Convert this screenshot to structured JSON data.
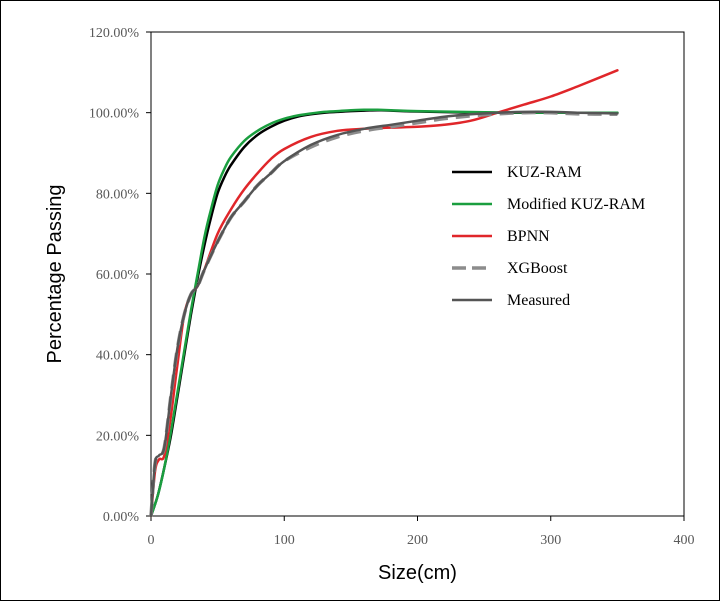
{
  "chart_data": {
    "type": "line",
    "title": "",
    "xlabel": "Size(cm)",
    "ylabel": "Percentage Passing",
    "xlim": [
      0,
      400
    ],
    "ylim": [
      0,
      120
    ],
    "x_ticks": [
      0,
      100,
      200,
      300,
      400
    ],
    "y_ticks": [
      0,
      20,
      40,
      60,
      80,
      100,
      120
    ],
    "x_tick_labels": [
      "0",
      "100",
      "200",
      "300",
      "400"
    ],
    "y_tick_labels": [
      "0.00%",
      "20.00%",
      "40.00%",
      "60.00%",
      "80.00%",
      "100.00%",
      "120.00%"
    ],
    "grid": false,
    "legend_position": "right",
    "series": [
      {
        "name": "KUZ-RAM",
        "color": "#000000",
        "dash": "solid",
        "x": [
          0,
          5,
          10,
          15,
          20,
          25,
          30,
          35,
          40,
          45,
          50,
          55,
          60,
          70,
          80,
          90,
          100,
          110,
          120,
          130,
          140,
          150,
          160,
          170,
          180,
          200,
          250,
          300,
          350
        ],
        "y": [
          0,
          5,
          12,
          20,
          30,
          40,
          50,
          59,
          67,
          74,
          80,
          84,
          87,
          91.5,
          94.5,
          96.5,
          98,
          99,
          99.6,
          100,
          100.2,
          100.4,
          100.5,
          100.6,
          100.5,
          100.3,
          100,
          100,
          100
        ]
      },
      {
        "name": "Modified KUZ-RAM",
        "color": "#1a9e3f",
        "dash": "solid",
        "x": [
          0,
          5,
          10,
          15,
          20,
          25,
          30,
          35,
          40,
          45,
          50,
          55,
          60,
          70,
          80,
          90,
          100,
          110,
          120,
          130,
          140,
          150,
          160,
          170,
          180,
          200,
          250,
          300,
          350
        ],
        "y": [
          0,
          5,
          12,
          21,
          31,
          41,
          51,
          60,
          69,
          76,
          82,
          86,
          89,
          93,
          95.5,
          97.3,
          98.5,
          99.3,
          99.8,
          100.2,
          100.4,
          100.6,
          100.7,
          100.7,
          100.6,
          100.4,
          100.1,
          100,
          100
        ]
      },
      {
        "name": "BPNN",
        "color": "#e0262a",
        "dash": "solid",
        "x": [
          0,
          3,
          6,
          10,
          15,
          20,
          25,
          30,
          35,
          40,
          50,
          60,
          70,
          80,
          90,
          100,
          120,
          140,
          160,
          180,
          200,
          220,
          240,
          260,
          280,
          300,
          320,
          350
        ],
        "y": [
          0,
          11,
          14,
          15,
          25,
          38,
          50,
          55,
          57,
          61,
          70,
          76,
          81,
          85,
          88.5,
          91,
          94,
          95.5,
          96,
          96.3,
          96.5,
          97,
          98,
          100,
          102,
          104,
          106.5,
          110.5
        ]
      },
      {
        "name": "XGBoost",
        "color": "#8c8c8c",
        "dash": "dashed",
        "x": [
          0,
          3,
          6,
          10,
          15,
          20,
          25,
          30,
          35,
          40,
          50,
          60,
          70,
          80,
          90,
          100,
          120,
          140,
          160,
          180,
          200,
          220,
          240,
          260,
          280,
          300,
          320,
          350
        ],
        "y": [
          0,
          13,
          15,
          17,
          30,
          42,
          50,
          55,
          57,
          61,
          68,
          74,
          78,
          82,
          85,
          88,
          91.5,
          94,
          95.5,
          96.5,
          97.5,
          98.5,
          99.2,
          99.7,
          100,
          100,
          99.7,
          99.6
        ]
      },
      {
        "name": "Measured",
        "color": "#555555",
        "dash": "solid",
        "x": [
          0,
          3,
          6,
          10,
          15,
          20,
          25,
          30,
          35,
          40,
          50,
          60,
          70,
          80,
          90,
          100,
          120,
          140,
          160,
          180,
          200,
          220,
          240,
          260,
          280,
          300,
          320,
          350
        ],
        "y": [
          0,
          13,
          15,
          17,
          30,
          42,
          50,
          55,
          57,
          61,
          68,
          74,
          78,
          82,
          85,
          88,
          92,
          94.5,
          96,
          97,
          98,
          99,
          99.6,
          100,
          100.2,
          100.2,
          100,
          99.8
        ]
      }
    ]
  }
}
